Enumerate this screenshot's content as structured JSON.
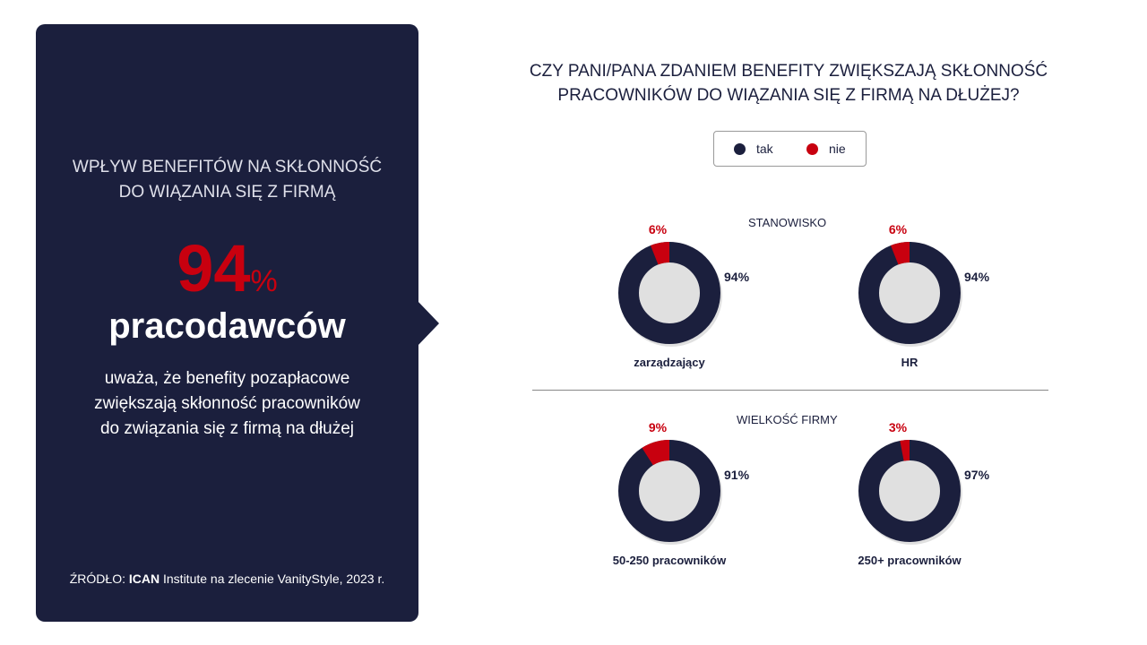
{
  "panel": {
    "title_line1": "WPŁYW BENEFITÓW NA SKŁONNOŚĆ",
    "title_line2": "DO WIĄZANIA SIĘ Z FIRMĄ",
    "big_value": "94",
    "big_pct": "%",
    "subject": "pracodawców",
    "desc_line1": "uważa, że benefity pozapłacowe",
    "desc_line2": "zwiększają skłonność pracowników",
    "desc_line3": "do związania się z firmą na dłużej",
    "source_label": "ŹRÓDŁO:",
    "source_bold": "ICAN",
    "source_rest": " Institute na zlecenie VanityStyle, 2023 r."
  },
  "chart_data": {
    "type": "pie",
    "title": "CZY  PANI/PANA ZDANIEM BENEFITY ZWIĘKSZAJĄ SKŁONNOŚĆ PRACOWNIKÓW DO WIĄZANIA SIĘ Z FIRMĄ NA DŁUŻEJ?",
    "title_line1": "CZY  PANI/PANA ZDANIEM BENEFITY ZWIĘKSZAJĄ SKŁONNOŚĆ",
    "title_line2": "PRACOWNIKÓW DO WIĄZANIA SIĘ Z FIRMĄ NA DŁUŻEJ?",
    "legend": [
      {
        "label": "tak",
        "color": "#1b1f3d"
      },
      {
        "label": "nie",
        "color": "#c8000f"
      }
    ],
    "sections": [
      {
        "name": "STANOWISKO",
        "charts": [
          {
            "label": "zarządzający",
            "tak": 94,
            "nie": 6
          },
          {
            "label": "HR",
            "tak": 94,
            "nie": 6
          }
        ]
      },
      {
        "name": "WIELKOŚĆ FIRMY",
        "charts": [
          {
            "label": "50-250 pracowników",
            "tak": 91,
            "nie": 9
          },
          {
            "label": "250+ pracowników",
            "tak": 97,
            "nie": 3
          }
        ]
      }
    ]
  }
}
